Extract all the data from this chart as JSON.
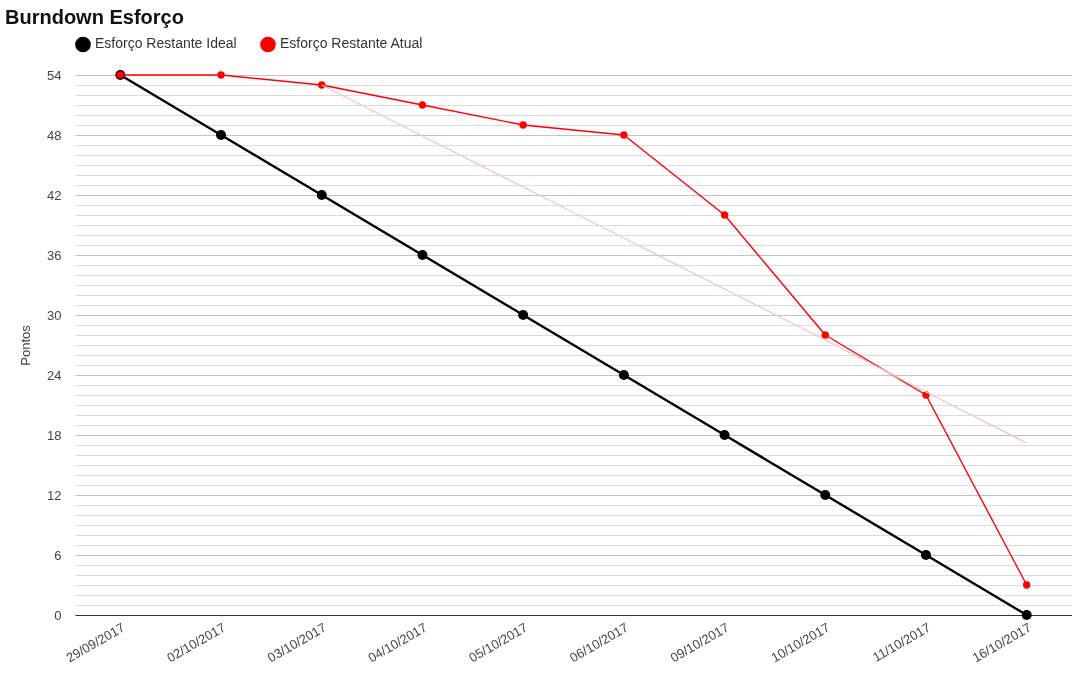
{
  "chart_data": {
    "type": "line",
    "title": "Burndown Esforço",
    "ylabel": "Pontos",
    "categories": [
      "29/09/2017",
      "02/10/2017",
      "03/10/2017",
      "04/10/2017",
      "05/10/2017",
      "06/10/2017",
      "09/10/2017",
      "10/10/2017",
      "11/10/2017",
      "16/10/2017"
    ],
    "series": [
      {
        "name": "Esforço Restante Ideal",
        "color": "#000000",
        "values": [
          54,
          48,
          42,
          36,
          30,
          24,
          18,
          12,
          6,
          0
        ]
      },
      {
        "name": "Esforço Restante Atual",
        "color": "#ff0000",
        "values": [
          54,
          54,
          53,
          51,
          49,
          48,
          40,
          28,
          22,
          3
        ]
      },
      {
        "type": "line",
        "marker": "none",
        "color": "#f5c4c4",
        "values": [
          null,
          null,
          53.0,
          47.9,
          42.8,
          37.7,
          32.6,
          27.5,
          22.3,
          17.2
        ]
      }
    ],
    "ylim": [
      0,
      54
    ],
    "yticks": [
      0,
      {
        "value": 1,
        "label": null
      },
      {
        "value": 2,
        "label": null
      },
      {
        "value": 3,
        "label": null
      },
      {
        "value": 4,
        "label": null
      },
      {
        "value": 5,
        "label": null
      },
      6,
      {
        "value": 7,
        "label": null
      },
      {
        "value": 8,
        "label": null
      },
      {
        "value": 9,
        "label": null
      },
      {
        "value": 10,
        "label": null
      },
      {
        "value": 11,
        "label": null
      },
      12,
      {
        "value": 13,
        "label": null
      },
      {
        "value": 14,
        "label": null
      },
      {
        "value": 15,
        "label": null
      },
      {
        "value": 16,
        "label": null
      },
      {
        "value": 17,
        "label": null
      },
      18,
      {
        "value": 19,
        "label": null
      },
      {
        "value": 20,
        "label": null
      },
      {
        "value": 21,
        "label": null
      },
      {
        "value": 22,
        "label": null
      },
      {
        "value": 23,
        "label": null
      },
      24,
      {
        "value": 25,
        "label": null
      },
      {
        "value": 26,
        "label": null
      },
      {
        "value": 27,
        "label": null
      },
      {
        "value": 28,
        "label": null
      },
      {
        "value": 29,
        "label": null
      },
      30,
      {
        "value": 31,
        "label": null
      },
      {
        "value": 32,
        "label": null
      },
      {
        "value": 33,
        "label": null
      },
      {
        "value": 34,
        "label": null
      },
      {
        "value": 35,
        "label": null
      },
      36,
      {
        "value": 37,
        "label": null
      },
      {
        "value": 38,
        "label": null
      },
      {
        "value": 39,
        "label": null
      },
      {
        "value": 40,
        "label": null
      },
      {
        "value": 41,
        "label": null
      },
      42,
      {
        "value": 43,
        "label": null
      },
      {
        "value": 44,
        "label": null
      },
      {
        "value": 45,
        "label": null
      },
      {
        "value": 46,
        "label": null
      },
      {
        "value": 47,
        "label": null
      },
      48,
      {
        "value": 49,
        "label": null
      },
      {
        "value": 50,
        "label": null
      },
      {
        "value": 51,
        "label": null
      },
      {
        "value": 52,
        "label": null
      },
      {
        "value": 53,
        "label": null
      },
      54
    ],
    "grid": true,
    "legend": "top",
    "marker": "circle"
  }
}
